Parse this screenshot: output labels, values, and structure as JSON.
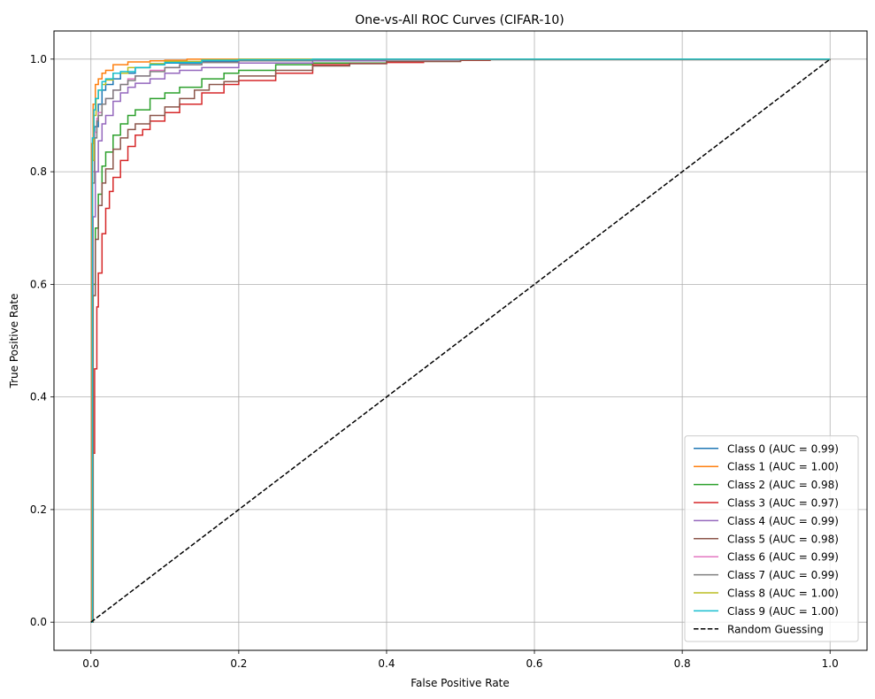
{
  "chart_data": {
    "type": "line",
    "title": "One-vs-All ROC Curves (CIFAR-10)",
    "xlabel": "False Positive Rate",
    "ylabel": "True Positive Rate",
    "xlim": [
      -0.05,
      1.05
    ],
    "ylim": [
      -0.05,
      1.05
    ],
    "xticks": [
      0.0,
      0.2,
      0.4,
      0.6,
      0.8,
      1.0
    ],
    "yticks": [
      0.0,
      0.2,
      0.4,
      0.6,
      0.8,
      1.0
    ],
    "tick_labels_x": [
      "0.0",
      "0.2",
      "0.4",
      "0.6",
      "0.8",
      "1.0"
    ],
    "tick_labels_y": [
      "0.0",
      "0.2",
      "0.4",
      "0.6",
      "0.8",
      "1.0"
    ],
    "grid": true,
    "legend_position": "lower-right",
    "series": [
      {
        "name": "Class 0 (AUC = 0.99)",
        "color": "#1f77b4",
        "x": [
          0,
          0.002,
          0.005,
          0.01,
          0.015,
          0.02,
          0.03,
          0.04,
          0.06,
          0.08,
          0.1,
          0.15,
          0.2,
          0.3,
          0.4,
          0.5,
          1.0
        ],
        "y": [
          0,
          0.8,
          0.88,
          0.92,
          0.945,
          0.955,
          0.965,
          0.975,
          0.985,
          0.99,
          0.993,
          0.996,
          0.998,
          0.999,
          1.0,
          1.0,
          1.0
        ]
      },
      {
        "name": "Class 1 (AUC = 1.00)",
        "color": "#ff7f0e",
        "x": [
          0,
          0.001,
          0.003,
          0.006,
          0.01,
          0.015,
          0.02,
          0.03,
          0.05,
          0.08,
          0.1,
          0.13,
          0.2,
          0.5,
          1.0
        ],
        "y": [
          0,
          0.85,
          0.92,
          0.955,
          0.965,
          0.975,
          0.98,
          0.99,
          0.995,
          0.997,
          0.998,
          1.0,
          1.0,
          1.0,
          1.0
        ]
      },
      {
        "name": "Class 2 (AUC = 0.98)",
        "color": "#2ca02c",
        "x": [
          0,
          0.003,
          0.006,
          0.01,
          0.015,
          0.02,
          0.03,
          0.04,
          0.05,
          0.06,
          0.08,
          0.1,
          0.12,
          0.15,
          0.18,
          0.2,
          0.25,
          0.3,
          0.4,
          0.5,
          0.54,
          1.0
        ],
        "y": [
          0,
          0.6,
          0.7,
          0.76,
          0.81,
          0.835,
          0.865,
          0.885,
          0.9,
          0.91,
          0.93,
          0.94,
          0.95,
          0.965,
          0.975,
          0.98,
          0.99,
          0.993,
          0.996,
          0.998,
          1.0,
          1.0
        ]
      },
      {
        "name": "Class 3 (AUC = 0.97)",
        "color": "#d62728",
        "x": [
          0,
          0.003,
          0.005,
          0.008,
          0.01,
          0.015,
          0.02,
          0.025,
          0.03,
          0.04,
          0.05,
          0.06,
          0.07,
          0.08,
          0.1,
          0.12,
          0.15,
          0.18,
          0.2,
          0.25,
          0.3,
          0.35,
          0.4,
          0.45,
          0.5,
          0.54,
          1.0
        ],
        "y": [
          0,
          0.3,
          0.45,
          0.56,
          0.62,
          0.69,
          0.735,
          0.765,
          0.79,
          0.82,
          0.845,
          0.865,
          0.875,
          0.89,
          0.905,
          0.92,
          0.94,
          0.955,
          0.962,
          0.975,
          0.99,
          0.992,
          0.994,
          0.996,
          0.998,
          1.0,
          1.0
        ]
      },
      {
        "name": "Class 4 (AUC = 0.99)",
        "color": "#9467bd",
        "x": [
          0,
          0.003,
          0.006,
          0.01,
          0.015,
          0.02,
          0.03,
          0.04,
          0.05,
          0.06,
          0.08,
          0.1,
          0.12,
          0.15,
          0.2,
          0.3,
          0.4,
          0.5,
          1.0
        ],
        "y": [
          0,
          0.72,
          0.8,
          0.855,
          0.885,
          0.9,
          0.925,
          0.94,
          0.95,
          0.957,
          0.965,
          0.975,
          0.98,
          0.985,
          0.993,
          0.997,
          0.999,
          1.0,
          1.0
        ]
      },
      {
        "name": "Class 5 (AUC = 0.98)",
        "color": "#8c564b",
        "x": [
          0,
          0.003,
          0.006,
          0.01,
          0.015,
          0.02,
          0.03,
          0.04,
          0.05,
          0.06,
          0.08,
          0.1,
          0.12,
          0.14,
          0.16,
          0.18,
          0.2,
          0.25,
          0.3,
          0.35,
          0.4,
          0.5,
          1.0
        ],
        "y": [
          0,
          0.58,
          0.68,
          0.74,
          0.78,
          0.805,
          0.84,
          0.86,
          0.875,
          0.885,
          0.9,
          0.915,
          0.93,
          0.945,
          0.955,
          0.96,
          0.97,
          0.98,
          0.988,
          0.992,
          0.996,
          0.999,
          1.0
        ]
      },
      {
        "name": "Class 6 (AUC = 0.99)",
        "color": "#e377c2",
        "x": [
          0,
          0.002,
          0.005,
          0.008,
          0.01,
          0.015,
          0.02,
          0.03,
          0.04,
          0.05,
          0.06,
          0.08,
          0.1,
          0.12,
          0.15,
          0.2,
          0.3,
          0.4,
          1.0
        ],
        "y": [
          0,
          0.8,
          0.87,
          0.895,
          0.905,
          0.92,
          0.93,
          0.945,
          0.955,
          0.965,
          0.97,
          0.98,
          0.985,
          0.99,
          0.994,
          0.997,
          0.999,
          1.0,
          1.0
        ]
      },
      {
        "name": "Class 7 (AUC = 0.99)",
        "color": "#7f7f7f",
        "x": [
          0,
          0.002,
          0.005,
          0.008,
          0.01,
          0.015,
          0.02,
          0.03,
          0.04,
          0.05,
          0.06,
          0.08,
          0.1,
          0.12,
          0.15,
          0.2,
          0.3,
          0.4,
          1.0
        ],
        "y": [
          0,
          0.78,
          0.86,
          0.89,
          0.9,
          0.92,
          0.93,
          0.945,
          0.955,
          0.962,
          0.97,
          0.978,
          0.985,
          0.99,
          0.994,
          0.997,
          0.999,
          1.0,
          1.0
        ]
      },
      {
        "name": "Class 8 (AUC = 1.00)",
        "color": "#bcbd22",
        "x": [
          0,
          0.002,
          0.004,
          0.007,
          0.01,
          0.015,
          0.02,
          0.03,
          0.05,
          0.08,
          0.1,
          0.15,
          0.2,
          0.3,
          1.0
        ],
        "y": [
          0,
          0.82,
          0.9,
          0.93,
          0.945,
          0.955,
          0.963,
          0.975,
          0.985,
          0.992,
          0.996,
          0.999,
          1.0,
          1.0,
          1.0
        ]
      },
      {
        "name": "Class 9 (AUC = 1.00)",
        "color": "#17becf",
        "x": [
          0,
          0.002,
          0.004,
          0.006,
          0.01,
          0.015,
          0.02,
          0.03,
          0.04,
          0.06,
          0.08,
          0.1,
          0.15,
          0.2,
          0.3,
          1.0
        ],
        "y": [
          0,
          0.86,
          0.91,
          0.93,
          0.945,
          0.96,
          0.965,
          0.975,
          0.978,
          0.985,
          0.99,
          0.994,
          0.998,
          0.999,
          1.0,
          1.0
        ]
      },
      {
        "name": "Random Guessing",
        "color": "#000000",
        "dashed": true,
        "x": [
          0,
          1
        ],
        "y": [
          0,
          1
        ]
      }
    ]
  }
}
